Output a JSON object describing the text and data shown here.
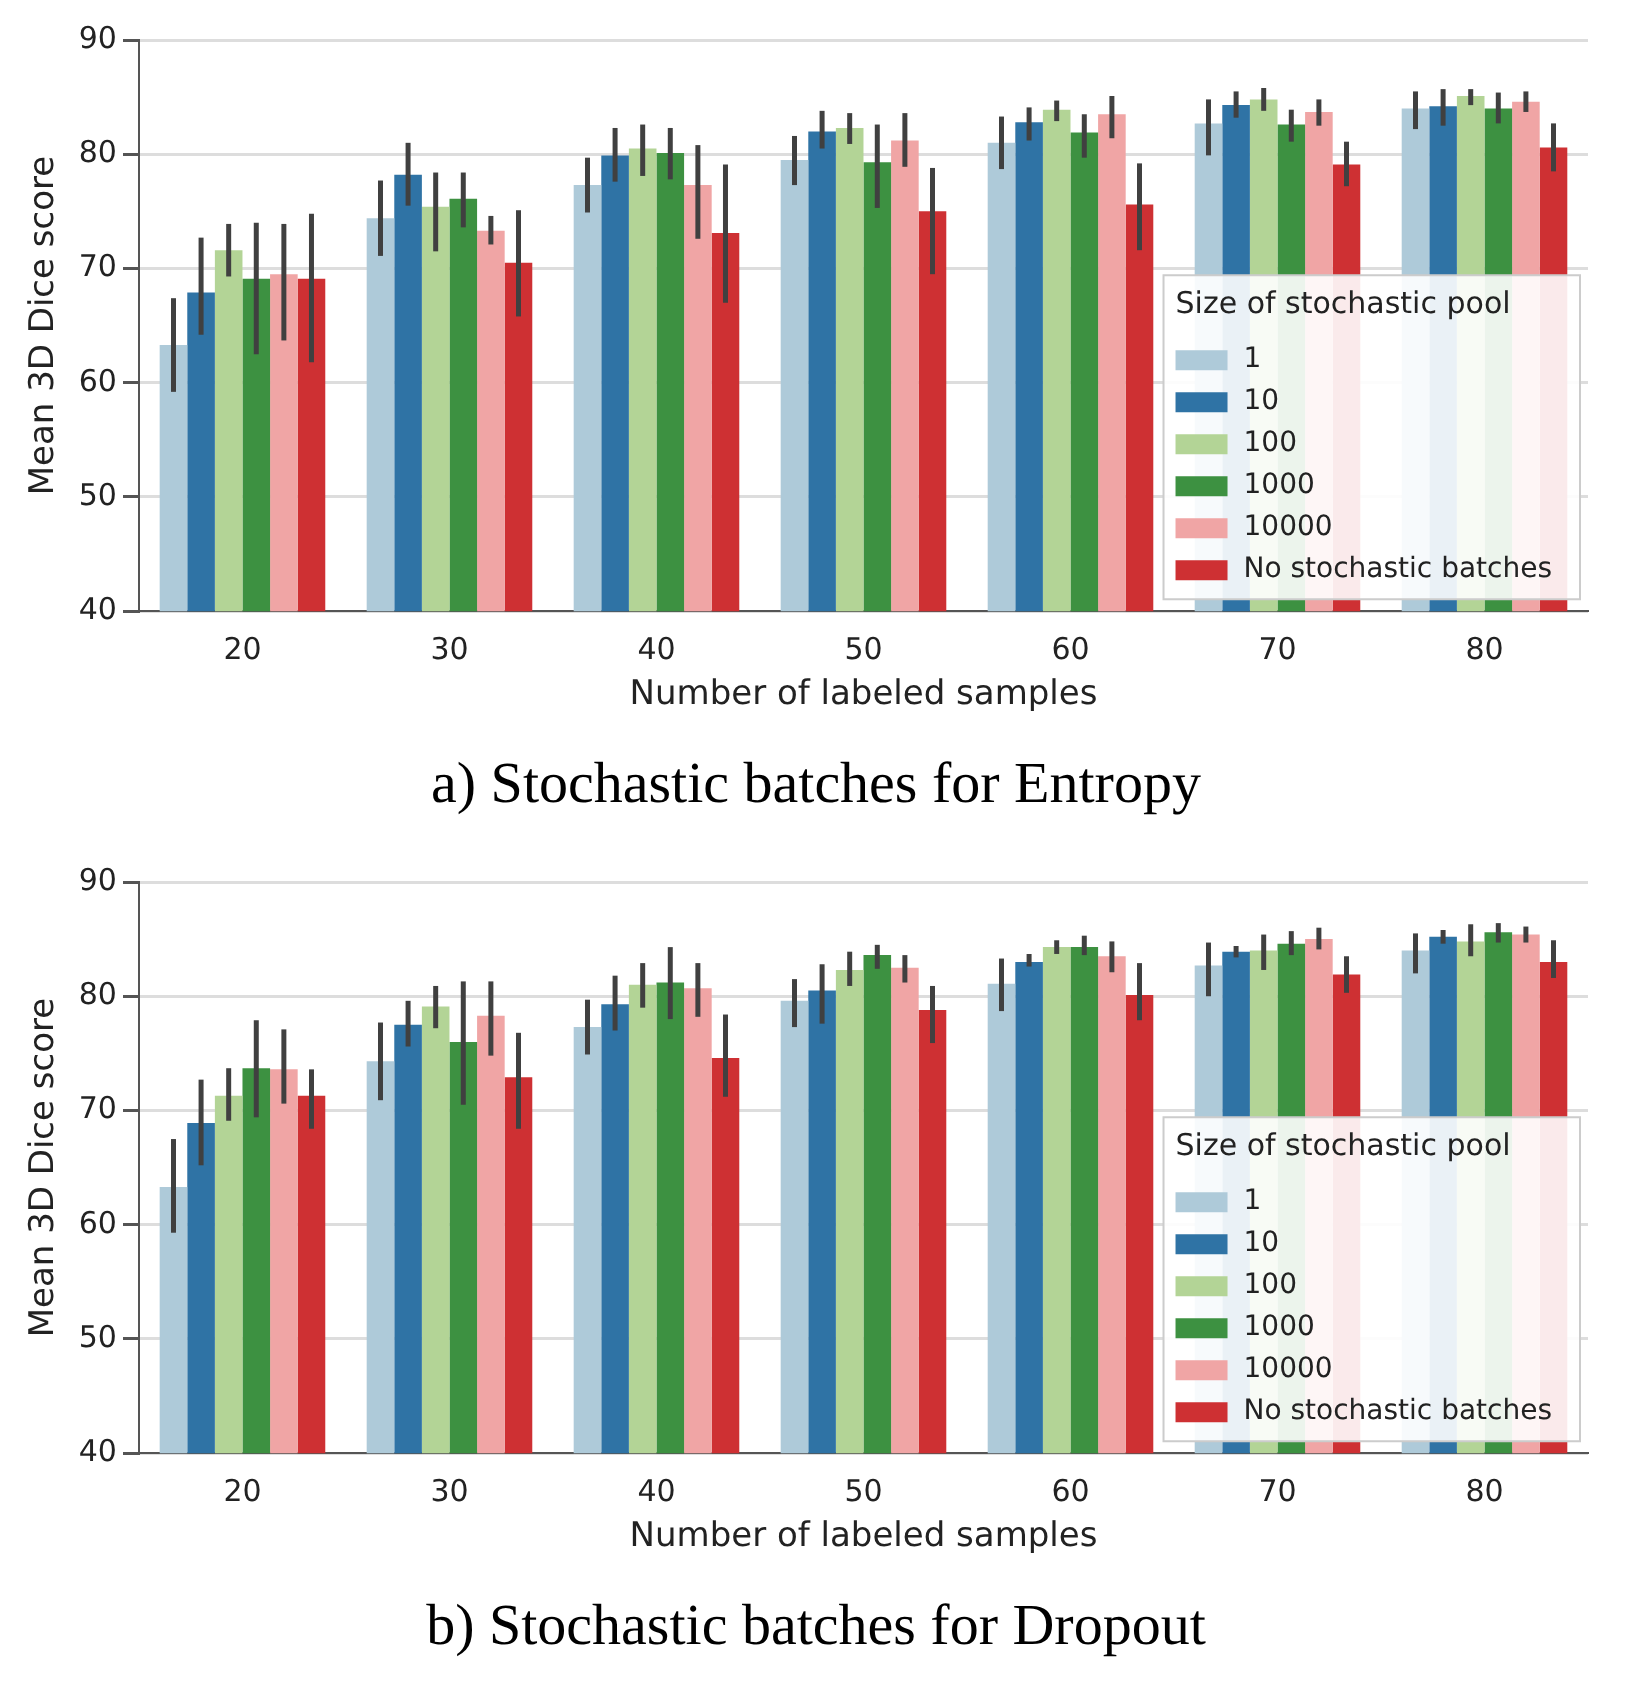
{
  "chart_data": [
    {
      "type": "bar",
      "title": "a) Stochastic batches for Entropy",
      "xlabel": "Number of labeled samples",
      "ylabel": "Mean 3D Dice score",
      "legend_title": "Size of stochastic pool",
      "legend": "bottom right",
      "grid": "y",
      "categories": [
        "20",
        "30",
        "40",
        "50",
        "60",
        "70",
        "80"
      ],
      "ylim": [
        40,
        90
      ],
      "yticks": [
        40,
        50,
        60,
        70,
        80,
        90
      ],
      "series": [
        {
          "name": "1",
          "color": "#aecad9",
          "values": [
            63.3,
            74.4,
            77.3,
            79.5,
            81.0,
            82.7,
            84.0
          ],
          "errors": [
            [
              59.2,
              67.4
            ],
            [
              71.1,
              77.7
            ],
            [
              74.9,
              79.7
            ],
            [
              77.3,
              81.6
            ],
            [
              78.7,
              83.3
            ],
            [
              79.9,
              84.8
            ],
            [
              82.2,
              85.5
            ]
          ]
        },
        {
          "name": "10",
          "color": "#2f73a5",
          "values": [
            67.9,
            78.2,
            79.9,
            82.0,
            82.8,
            84.3,
            84.2
          ],
          "errors": [
            [
              64.2,
              72.7
            ],
            [
              75.5,
              81.0
            ],
            [
              77.6,
              82.3
            ],
            [
              80.5,
              83.8
            ],
            [
              81.2,
              84.1
            ],
            [
              83.2,
              85.5
            ],
            [
              82.5,
              85.7
            ]
          ]
        },
        {
          "name": "100",
          "color": "#b3d496",
          "values": [
            71.6,
            75.4,
            80.5,
            82.3,
            83.9,
            84.8,
            85.1
          ],
          "errors": [
            [
              69.3,
              73.9
            ],
            [
              71.5,
              78.4
            ],
            [
              78.1,
              82.6
            ],
            [
              80.9,
              83.6
            ],
            [
              82.9,
              84.7
            ],
            [
              83.8,
              85.8
            ],
            [
              84.3,
              85.7
            ]
          ]
        },
        {
          "name": "1000",
          "color": "#3d9141",
          "values": [
            69.1,
            76.1,
            80.1,
            79.3,
            81.9,
            82.6,
            84.0
          ],
          "errors": [
            [
              62.5,
              74.0
            ],
            [
              73.6,
              78.4
            ],
            [
              77.8,
              82.3
            ],
            [
              75.3,
              82.6
            ],
            [
              79.7,
              83.5
            ],
            [
              81.1,
              83.9
            ],
            [
              82.7,
              85.4
            ]
          ]
        },
        {
          "name": "10000",
          "color": "#f0a5a5",
          "values": [
            69.5,
            73.3,
            77.3,
            81.2,
            83.5,
            83.7,
            84.6
          ],
          "errors": [
            [
              63.7,
              73.9
            ],
            [
              72.1,
              74.6
            ],
            [
              72.6,
              80.8
            ],
            [
              78.9,
              83.6
            ],
            [
              81.4,
              85.1
            ],
            [
              82.5,
              84.8
            ],
            [
              83.7,
              85.5
            ]
          ]
        },
        {
          "name": "No stochastic batches",
          "color": "#ce3033",
          "values": [
            69.1,
            70.5,
            73.1,
            75.0,
            75.6,
            79.1,
            80.6
          ],
          "errors": [
            [
              61.8,
              74.8
            ],
            [
              65.8,
              75.1
            ],
            [
              67.0,
              79.1
            ],
            [
              69.5,
              78.8
            ],
            [
              71.6,
              79.2
            ],
            [
              77.2,
              81.1
            ],
            [
              78.5,
              82.7
            ]
          ]
        }
      ]
    },
    {
      "type": "bar",
      "title": "b) Stochastic batches for Dropout",
      "xlabel": "Number of labeled samples",
      "ylabel": "Mean 3D Dice score",
      "legend_title": "Size of stochastic pool",
      "legend": "bottom right",
      "grid": "y",
      "categories": [
        "20",
        "30",
        "40",
        "50",
        "60",
        "70",
        "80"
      ],
      "ylim": [
        40,
        90
      ],
      "yticks": [
        40,
        50,
        60,
        70,
        80,
        90
      ],
      "series": [
        {
          "name": "1",
          "color": "#aecad9",
          "values": [
            63.3,
            74.3,
            77.3,
            79.6,
            81.1,
            82.7,
            84.0
          ],
          "errors": [
            [
              59.3,
              67.5
            ],
            [
              70.9,
              77.7
            ],
            [
              74.9,
              79.7
            ],
            [
              77.3,
              81.5
            ],
            [
              78.7,
              83.3
            ],
            [
              80.0,
              84.7
            ],
            [
              82.0,
              85.5
            ]
          ]
        },
        {
          "name": "10",
          "color": "#2f73a5",
          "values": [
            68.9,
            77.5,
            79.3,
            80.5,
            83.0,
            83.9,
            85.2
          ],
          "errors": [
            [
              65.2,
              72.7
            ],
            [
              75.6,
              79.6
            ],
            [
              77.0,
              81.8
            ],
            [
              77.6,
              82.8
            ],
            [
              82.6,
              83.7
            ],
            [
              83.4,
              84.4
            ],
            [
              84.6,
              85.8
            ]
          ]
        },
        {
          "name": "100",
          "color": "#b3d496",
          "values": [
            71.3,
            79.1,
            81.0,
            82.3,
            84.3,
            84.0,
            84.8
          ],
          "errors": [
            [
              69.1,
              73.7
            ],
            [
              77.2,
              80.9
            ],
            [
              79.0,
              82.9
            ],
            [
              80.9,
              83.9
            ],
            [
              83.7,
              84.9
            ],
            [
              82.3,
              85.4
            ],
            [
              83.5,
              86.3
            ]
          ]
        },
        {
          "name": "1000",
          "color": "#3d9141",
          "values": [
            73.7,
            76.0,
            81.2,
            83.6,
            84.3,
            84.6,
            85.6
          ],
          "errors": [
            [
              69.4,
              77.9
            ],
            [
              70.5,
              81.3
            ],
            [
              78.0,
              84.3
            ],
            [
              82.4,
              84.5
            ],
            [
              83.6,
              85.3
            ],
            [
              83.6,
              85.7
            ],
            [
              84.7,
              86.4
            ]
          ]
        },
        {
          "name": "10000",
          "color": "#f0a5a5",
          "values": [
            73.6,
            78.3,
            80.7,
            82.5,
            83.5,
            85.0,
            85.4
          ],
          "errors": [
            [
              70.6,
              77.1
            ],
            [
              74.8,
              81.3
            ],
            [
              78.2,
              82.9
            ],
            [
              81.2,
              83.6
            ],
            [
              82.1,
              84.8
            ],
            [
              84.1,
              86.0
            ],
            [
              84.7,
              86.1
            ]
          ]
        },
        {
          "name": "No stochastic batches",
          "color": "#ce3033",
          "values": [
            71.3,
            72.9,
            74.6,
            78.8,
            80.1,
            81.9,
            83.0
          ],
          "errors": [
            [
              68.4,
              73.6
            ],
            [
              68.4,
              76.8
            ],
            [
              71.2,
              78.4
            ],
            [
              75.9,
              80.9
            ],
            [
              77.9,
              82.9
            ],
            [
              80.3,
              83.5
            ],
            [
              81.6,
              84.9
            ]
          ]
        }
      ]
    }
  ]
}
